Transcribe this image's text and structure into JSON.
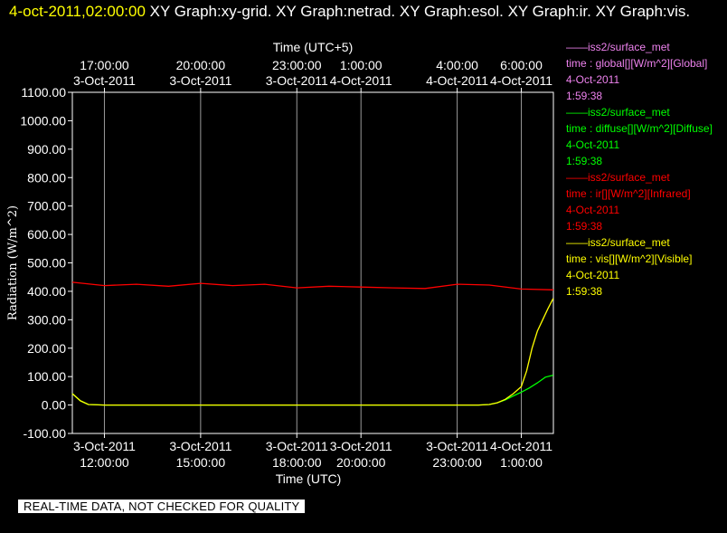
{
  "header": {
    "time": "4-oct-2011,02:00:00",
    "graphs": " XY Graph:xy-grid.  XY Graph:netrad.  XY Graph:esol.  XY Graph:ir.  XY Graph:vis."
  },
  "legend": [
    {
      "source": "iss2/surface_met",
      "variable": "time : global[][W/m^2][Global]",
      "date": "4-Oct-2011",
      "time": "1:59:38",
      "color": "#ee82ee"
    },
    {
      "source": "iss2/surface_met",
      "variable": "time : diffuse[][W/m^2][Diffuse]",
      "date": "4-Oct-2011",
      "time": "1:59:38",
      "color": "#00ff00"
    },
    {
      "source": "iss2/surface_met",
      "variable": "time : ir[][W/m^2][Infrared]",
      "date": "4-Oct-2011",
      "time": "1:59:38",
      "color": "#ff0000"
    },
    {
      "source": "iss2/surface_met",
      "variable": "time : vis[][W/m^2][Visible]",
      "date": "4-Oct-2011",
      "time": "1:59:38",
      "color": "#ffff00"
    }
  ],
  "banner": "REAL-TIME DATA, NOT CHECKED FOR QUALITY",
  "chart_data": {
    "type": "line",
    "title": "",
    "xlabel": "Time (UTC)",
    "x2label": "Time (UTC+5)",
    "ylabel": "Radiation (W/m^2)",
    "xlim": [
      "3-Oct-2011 11:00:00",
      "4-Oct-2011 02:00:00"
    ],
    "ylim": [
      -100,
      1100
    ],
    "yticks": [
      "-100.00",
      "0.00",
      "100.00",
      "200.00",
      "300.00",
      "400.00",
      "500.00",
      "600.00",
      "700.00",
      "800.00",
      "900.00",
      "1000.00",
      "1100.00"
    ],
    "grid": "vertical",
    "legend_position": "right",
    "xticks_bottom": [
      {
        "x": "3-Oct-2011 12:00:00",
        "date": "3-Oct-2011",
        "time": "12:00:00"
      },
      {
        "x": "3-Oct-2011 15:00:00",
        "date": "3-Oct-2011",
        "time": "15:00:00"
      },
      {
        "x": "3-Oct-2011 18:00:00",
        "date": "3-Oct-2011",
        "time": "18:00:00"
      },
      {
        "x": "3-Oct-2011 20:00:00",
        "date": "3-Oct-2011",
        "time": "20:00:00"
      },
      {
        "x": "3-Oct-2011 23:00:00",
        "date": "3-Oct-2011",
        "time": "23:00:00"
      },
      {
        "x": "4-Oct-2011 01:00:00",
        "date": "4-Oct-2011",
        "time": "1:00:00"
      }
    ],
    "xticks_top": [
      {
        "x": "3-Oct-2011 17:00:00",
        "date": "3-Oct-2011",
        "time": "17:00:00"
      },
      {
        "x": "3-Oct-2011 20:00:00",
        "date": "3-Oct-2011",
        "time": "20:00:00"
      },
      {
        "x": "3-Oct-2011 23:00:00",
        "date": "3-Oct-2011",
        "time": "23:00:00"
      },
      {
        "x": "4-Oct-2011 01:00:00",
        "date": "4-Oct-2011",
        "time": "1:00:00"
      },
      {
        "x": "4-Oct-2011 04:00:00",
        "date": "4-Oct-2011",
        "time": "4:00:00"
      },
      {
        "x": "4-Oct-2011 06:00:00",
        "date": "4-Oct-2011",
        "time": "6:00:00"
      }
    ],
    "series": [
      {
        "name": "time : ir[][W/m^2][Infrared]",
        "color": "#ff0000",
        "x": [
          "3-Oct-2011 11:00:00",
          "3-Oct-2011 12:00:00",
          "3-Oct-2011 13:00:00",
          "3-Oct-2011 14:00:00",
          "3-Oct-2011 15:00:00",
          "3-Oct-2011 16:00:00",
          "3-Oct-2011 17:00:00",
          "3-Oct-2011 18:00:00",
          "3-Oct-2011 19:00:00",
          "3-Oct-2011 20:00:00",
          "3-Oct-2011 21:00:00",
          "3-Oct-2011 22:00:00",
          "3-Oct-2011 23:00:00",
          "4-Oct-2011 00:00:00",
          "4-Oct-2011 01:00:00",
          "4-Oct-2011 02:00:00"
        ],
        "y": [
          432,
          420,
          425,
          418,
          428,
          420,
          425,
          412,
          418,
          415,
          412,
          410,
          425,
          422,
          408,
          405
        ]
      },
      {
        "name": "time : diffuse[][W/m^2][Diffuse]",
        "color": "#00ff00",
        "x": [
          "3-Oct-2011 11:00:00",
          "3-Oct-2011 11:15:00",
          "3-Oct-2011 11:30:00",
          "3-Oct-2011 12:00:00",
          "3-Oct-2011 23:40:00",
          "4-Oct-2011 00:00:00",
          "4-Oct-2011 00:15:00",
          "4-Oct-2011 00:30:00",
          "4-Oct-2011 00:45:00",
          "4-Oct-2011 01:00:00",
          "4-Oct-2011 01:15:00",
          "4-Oct-2011 01:30:00",
          "4-Oct-2011 01:45:00",
          "4-Oct-2011 01:59:38"
        ],
        "y": [
          40,
          15,
          2,
          0,
          0,
          2,
          8,
          18,
          32,
          45,
          60,
          78,
          98,
          105
        ]
      },
      {
        "name": "time : vis[][W/m^2][Visible]",
        "color": "#ffff00",
        "x": [
          "3-Oct-2011 11:00:00",
          "3-Oct-2011 11:15:00",
          "3-Oct-2011 11:30:00",
          "3-Oct-2011 12:00:00",
          "3-Oct-2011 23:40:00",
          "4-Oct-2011 00:00:00",
          "4-Oct-2011 00:15:00",
          "4-Oct-2011 00:30:00",
          "4-Oct-2011 00:45:00",
          "4-Oct-2011 01:00:00",
          "4-Oct-2011 01:10:00",
          "4-Oct-2011 01:20:00",
          "4-Oct-2011 01:30:00",
          "4-Oct-2011 01:40:00",
          "4-Oct-2011 01:50:00",
          "4-Oct-2011 01:59:38"
        ],
        "y": [
          40,
          15,
          2,
          0,
          0,
          2,
          8,
          20,
          40,
          65,
          120,
          200,
          260,
          300,
          340,
          375
        ]
      }
    ]
  }
}
